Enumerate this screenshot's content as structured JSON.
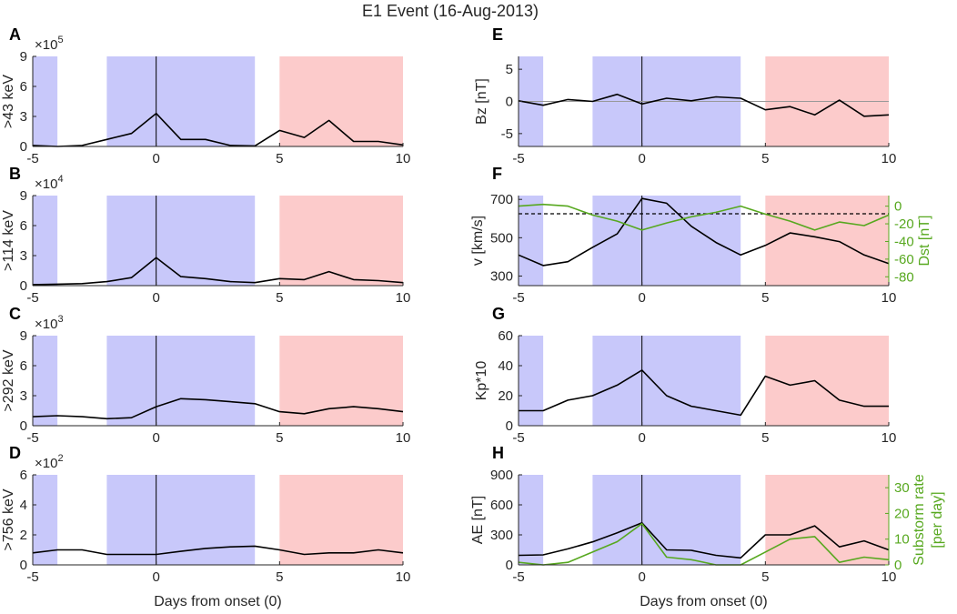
{
  "title": "E1 Event (16-Aug-2013)",
  "shared": {
    "xlim": [
      -5,
      10
    ],
    "xticks": [
      "-5",
      "0",
      "5",
      "10"
    ],
    "xlabel": "Days from onset (0)",
    "x": [
      -5,
      -4,
      -3,
      -2,
      -1,
      0,
      1,
      2,
      3,
      4,
      5,
      6,
      7,
      8,
      9,
      10
    ],
    "shading": [
      {
        "from": -5,
        "to": -4,
        "color": "#c8c8fa"
      },
      {
        "from": -2,
        "to": 4,
        "color": "#c8c8fa"
      },
      {
        "from": 5,
        "to": 10,
        "color": "#fccbcb"
      }
    ],
    "onset_line": 0
  },
  "chart_data": [
    {
      "id": "A",
      "type": "line",
      "ylabel": ">43 keV",
      "exponent": "×10",
      "exponent_power": "5",
      "ylim": [
        0,
        9
      ],
      "yticks": [
        "0",
        "3",
        "6",
        "9"
      ],
      "series": [
        {
          "name": "flux",
          "color": "#000000",
          "values": [
            0.1,
            0.0,
            0.1,
            0.7,
            1.3,
            3.3,
            0.7,
            0.7,
            0.1,
            0.05,
            1.6,
            0.9,
            2.6,
            0.5,
            0.5,
            0.15
          ]
        }
      ]
    },
    {
      "id": "B",
      "type": "line",
      "ylabel": ">114 keV",
      "exponent": "×10",
      "exponent_power": "4",
      "ylim": [
        0,
        9
      ],
      "yticks": [
        "0",
        "3",
        "6",
        "9"
      ],
      "series": [
        {
          "name": "flux",
          "color": "#000000",
          "values": [
            0.1,
            0.15,
            0.2,
            0.4,
            0.8,
            2.8,
            0.9,
            0.7,
            0.4,
            0.3,
            0.7,
            0.6,
            1.4,
            0.6,
            0.5,
            0.3
          ]
        }
      ]
    },
    {
      "id": "C",
      "type": "line",
      "ylabel": ">292 keV",
      "exponent": "×10",
      "exponent_power": "3",
      "ylim": [
        0,
        9
      ],
      "yticks": [
        "0",
        "3",
        "6",
        "9"
      ],
      "series": [
        {
          "name": "flux",
          "color": "#000000",
          "values": [
            0.9,
            1.0,
            0.9,
            0.7,
            0.8,
            1.9,
            2.7,
            2.6,
            2.4,
            2.2,
            1.4,
            1.2,
            1.7,
            1.9,
            1.7,
            1.4
          ]
        }
      ]
    },
    {
      "id": "D",
      "type": "line",
      "ylabel": ">756 keV",
      "exponent": "×10",
      "exponent_power": "2",
      "ylim": [
        0,
        6
      ],
      "yticks": [
        "0",
        "2",
        "4",
        "6"
      ],
      "series": [
        {
          "name": "flux",
          "color": "#000000",
          "values": [
            0.8,
            1.0,
            1.0,
            0.7,
            0.7,
            0.7,
            0.9,
            1.1,
            1.2,
            1.25,
            1.0,
            0.7,
            0.8,
            0.8,
            1.0,
            0.8
          ]
        }
      ]
    },
    {
      "id": "E",
      "type": "line",
      "ylabel": "Bz [nT]",
      "ylim": [
        -7,
        7
      ],
      "yticks": [
        "-5",
        "0",
        "5"
      ],
      "ytick_values": [
        -5,
        0,
        5
      ],
      "zero_line": 0,
      "series": [
        {
          "name": "Bz",
          "color": "#000000",
          "values": [
            0.1,
            -0.6,
            0.3,
            0.0,
            1.1,
            -0.4,
            0.5,
            0.1,
            0.7,
            0.5,
            -1.3,
            -0.8,
            -2.1,
            0.2,
            -2.3,
            -2.1
          ]
        }
      ]
    },
    {
      "id": "F",
      "type": "line",
      "ylabel": "v [km/s]",
      "y2label": "Dst [nT]",
      "ylim": [
        250,
        720
      ],
      "yticks": [
        "300",
        "500",
        "700"
      ],
      "ytick_values": [
        300,
        500,
        700
      ],
      "y2lim": [
        -90,
        12
      ],
      "y2ticks": [
        "0",
        "-20",
        "-40",
        "-60",
        "-80"
      ],
      "y2tick_values": [
        0,
        -20,
        -40,
        -60,
        -80
      ],
      "dashed_ref": 625,
      "series": [
        {
          "name": "v",
          "axis": "left",
          "color": "#000000",
          "values": [
            410,
            355,
            375,
            450,
            520,
            705,
            680,
            560,
            475,
            410,
            460,
            525,
            505,
            480,
            410,
            365
          ]
        },
        {
          "name": "Dst",
          "axis": "right",
          "color": "#57a81f",
          "values": [
            0,
            2,
            0,
            -10,
            -17,
            -27,
            -19,
            -12,
            -7,
            0,
            -9,
            -17,
            -27,
            -18,
            -22,
            -10
          ]
        }
      ]
    },
    {
      "id": "G",
      "type": "line",
      "ylabel": "Kp*10",
      "ylim": [
        0,
        60
      ],
      "yticks": [
        "0",
        "20",
        "40",
        "60"
      ],
      "ytick_values": [
        0,
        20,
        40,
        60
      ],
      "series": [
        {
          "name": "Kp*10",
          "color": "#000000",
          "values": [
            10,
            10,
            17,
            20,
            27,
            37,
            20,
            13,
            10,
            7,
            33,
            27,
            30,
            17,
            13,
            13
          ]
        }
      ]
    },
    {
      "id": "H",
      "type": "line",
      "ylabel": "AE [nT]",
      "y2label": "Substorm rate",
      "y2label2": "[per day]",
      "ylim": [
        0,
        900
      ],
      "yticks": [
        "0",
        "300",
        "600",
        "900"
      ],
      "ytick_values": [
        0,
        300,
        600,
        900
      ],
      "y2lim": [
        0,
        35
      ],
      "y2ticks": [
        "0",
        "10",
        "20",
        "30"
      ],
      "y2tick_values": [
        0,
        10,
        20,
        30
      ],
      "series": [
        {
          "name": "AE",
          "axis": "left",
          "color": "#000000",
          "values": [
            95,
            100,
            160,
            230,
            320,
            420,
            150,
            145,
            95,
            70,
            300,
            300,
            390,
            180,
            240,
            150
          ]
        },
        {
          "name": "Substorm rate",
          "axis": "right",
          "color": "#57a81f",
          "values": [
            1,
            0,
            1,
            5,
            9,
            16,
            3,
            2,
            0,
            0,
            5,
            10,
            11,
            1,
            3,
            2
          ]
        }
      ]
    }
  ]
}
